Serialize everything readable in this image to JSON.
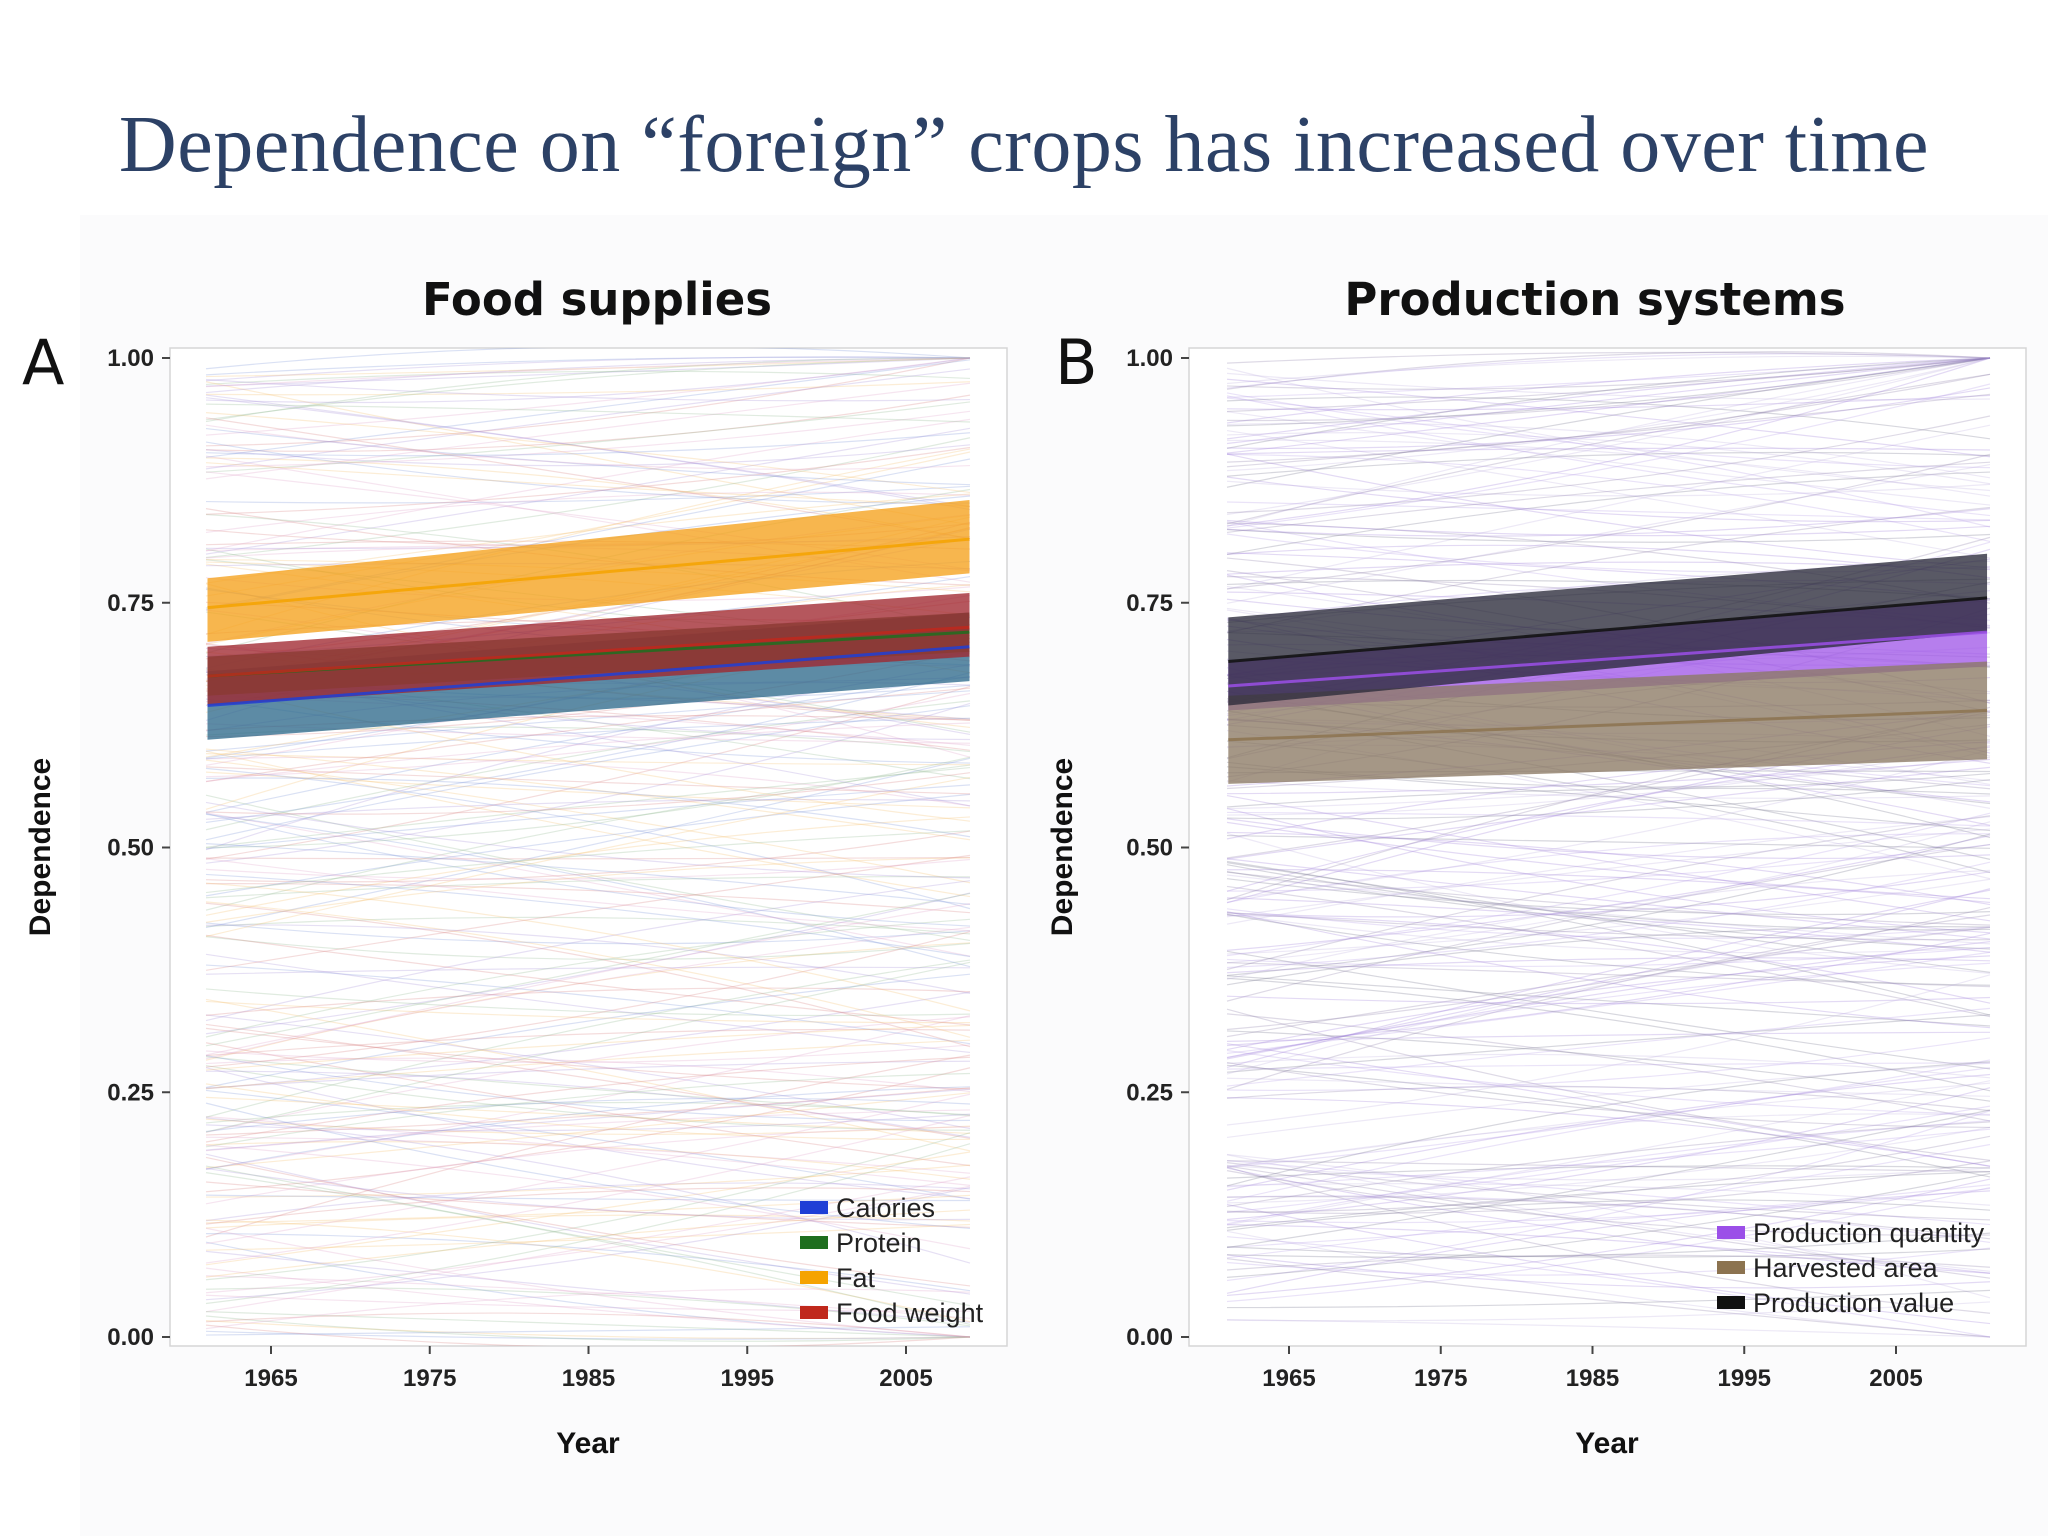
{
  "slide": {
    "title": "Dependence on “foreign” crops has increased over time"
  },
  "chart_data": [
    {
      "type": "line",
      "panel_letter": "A",
      "title": "Food supplies",
      "xlabel": "Year",
      "ylabel": "Dependence",
      "xlim": [
        1961,
        2009
      ],
      "ylim": [
        0,
        1
      ],
      "x_ticks": [
        "1965",
        "1975",
        "1985",
        "1995",
        "2005"
      ],
      "y_ticks": [
        "0.00",
        "0.25",
        "0.50",
        "0.75",
        "1.00"
      ],
      "grid": false,
      "legend_position": "bottom-right",
      "background_lines": "hundreds of faint per-country trend lines spanning the full 0–1 range",
      "series": [
        {
          "name": "Calories",
          "color": "#1f3fd6",
          "band_color": "#2f6a8c",
          "x": [
            1961,
            2009
          ],
          "y": [
            0.645,
            0.705
          ],
          "band_lower": [
            0.61,
            0.67
          ],
          "band_upper": [
            0.68,
            0.74
          ]
        },
        {
          "name": "Protein",
          "color": "#1e6e1e",
          "band_color": "#3c7a3c",
          "x": [
            1961,
            2009
          ],
          "y": [
            0.675,
            0.72
          ],
          "band_lower": [
            0.655,
            0.7
          ],
          "band_upper": [
            0.695,
            0.74
          ]
        },
        {
          "name": "Fat",
          "color": "#f5a300",
          "band_color": "#f5a21c",
          "x": [
            1961,
            2009
          ],
          "y": [
            0.745,
            0.815
          ],
          "band_lower": [
            0.71,
            0.78
          ],
          "band_upper": [
            0.775,
            0.855
          ]
        },
        {
          "name": "Food weight",
          "color": "#c0281c",
          "band_color": "#a02830",
          "x": [
            1961,
            2009
          ],
          "y": [
            0.675,
            0.725
          ],
          "band_lower": [
            0.645,
            0.695
          ],
          "band_upper": [
            0.705,
            0.76
          ]
        }
      ]
    },
    {
      "type": "line",
      "panel_letter": "B",
      "title": "Production systems",
      "xlabel": "Year",
      "ylabel": "Dependence",
      "xlim": [
        1961,
        2011
      ],
      "ylim": [
        0,
        1
      ],
      "x_ticks": [
        "1965",
        "1975",
        "1985",
        "1995",
        "2005"
      ],
      "y_ticks": [
        "0.00",
        "0.25",
        "0.50",
        "0.75",
        "1.00"
      ],
      "grid": false,
      "legend_position": "bottom-right",
      "background_lines": "hundreds of faint per-country trend lines spanning the full 0–1 range",
      "series": [
        {
          "name": "Production quantity",
          "color": "#9b4fe8",
          "band_color": "#a25ae8",
          "x": [
            1961,
            2011
          ],
          "y": [
            0.665,
            0.72
          ],
          "band_lower": [
            0.64,
            0.685
          ],
          "band_upper": [
            0.69,
            0.755
          ]
        },
        {
          "name": "Harvested area",
          "color": "#8c7350",
          "band_color": "#8c7a64",
          "x": [
            1961,
            2011
          ],
          "y": [
            0.61,
            0.64
          ],
          "band_lower": [
            0.565,
            0.59
          ],
          "band_upper": [
            0.655,
            0.69
          ]
        },
        {
          "name": "Production value",
          "color": "#111111",
          "band_color": "#2a2a3a",
          "x": [
            1961,
            2011
          ],
          "y": [
            0.69,
            0.755
          ],
          "band_lower": [
            0.645,
            0.72
          ],
          "band_upper": [
            0.735,
            0.8
          ]
        }
      ]
    }
  ]
}
